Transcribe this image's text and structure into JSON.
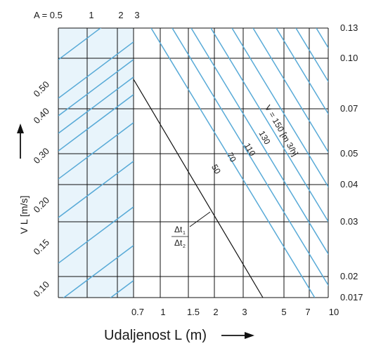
{
  "chart_data": {
    "type": "line",
    "title": "",
    "xlabel": "Udaljenost L (m)",
    "ylabel": "V L [m/s]",
    "x_ticks": [
      "0.7",
      "1",
      "1.5",
      "2",
      "3",
      "5",
      "7",
      "10"
    ],
    "x_tick_values": [
      0.7,
      1,
      1.5,
      2,
      3,
      5,
      7,
      10
    ],
    "a_label": "A = 0.5",
    "a_ticks": [
      "1",
      "2",
      "3"
    ],
    "left_y_ticks": [
      "0.50",
      "0.40",
      "0.30",
      "0.20",
      "0.15",
      "0.10"
    ],
    "right_y_ticks": [
      "0.13",
      "0.10",
      "0.07",
      "0.05",
      "0.04",
      "0.03",
      "0.02",
      "0.017"
    ],
    "series_labels": [
      "V = 150 [m 3/h]",
      "130",
      "110",
      "70",
      "50"
    ],
    "delta_label": {
      "num": "Δt",
      "num_sub": "1",
      "den": "Δt",
      "den_sub": "2"
    },
    "grid": true,
    "shaded_region": "x < 0.7"
  }
}
